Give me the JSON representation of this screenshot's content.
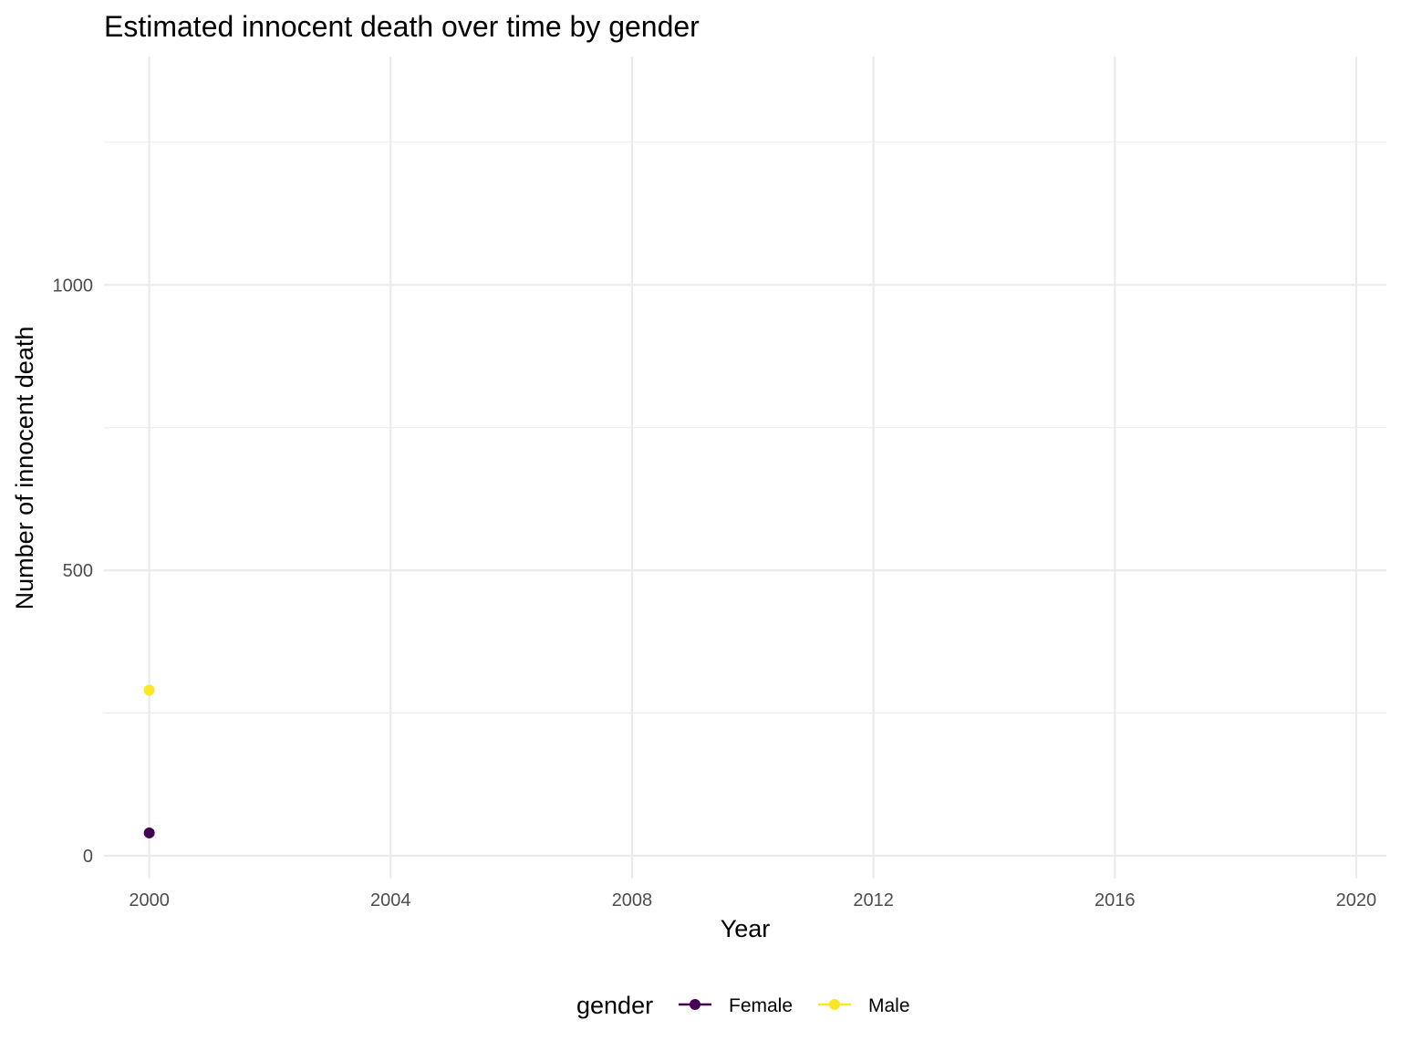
{
  "chart_data": {
    "type": "line",
    "title": "Estimated innocent death over time by gender",
    "xlabel": "Year",
    "ylabel": "Number of innocent death",
    "xlim": [
      1999.25,
      2020.5
    ],
    "ylim": [
      -40,
      1400
    ],
    "x_ticks": [
      2000,
      2004,
      2008,
      2012,
      2016,
      2020
    ],
    "x_tick_labels": [
      "2000",
      "2004",
      "2008",
      "2012",
      "2016",
      "2020"
    ],
    "y_ticks": [
      0,
      500,
      1000
    ],
    "y_tick_labels": [
      "0",
      "500",
      "1000"
    ],
    "y_minor_ticks": [
      250,
      750,
      1250
    ],
    "grid": true,
    "legend": {
      "title": "gender",
      "position": "bottom"
    },
    "series": [
      {
        "name": "Female",
        "color": "#440154",
        "points": [
          {
            "x": 2000,
            "y": 40
          }
        ]
      },
      {
        "name": "Male",
        "color": "#fde725",
        "points": [
          {
            "x": 2000,
            "y": 290
          }
        ]
      }
    ]
  }
}
